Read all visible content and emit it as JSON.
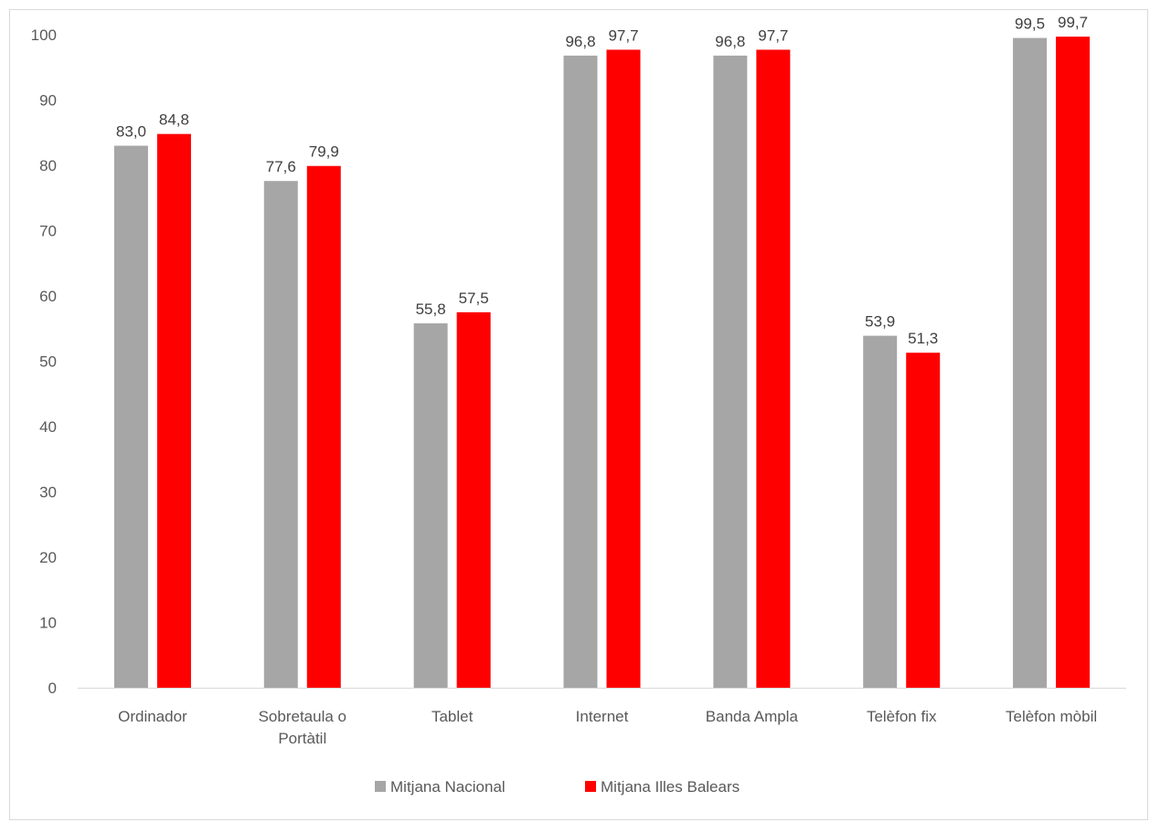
{
  "chart_data": {
    "type": "bar",
    "categories": [
      "Ordinador",
      "Sobretaula o Portàtil",
      "Tablet",
      "Internet",
      "Banda Ampla",
      "Telèfon fix",
      "Telèfon mòbil"
    ],
    "category_lines": [
      [
        "Ordinador"
      ],
      [
        "Sobretaula o",
        "Portàtil"
      ],
      [
        "Tablet"
      ],
      [
        "Internet"
      ],
      [
        "Banda Ampla"
      ],
      [
        "Telèfon fix"
      ],
      [
        "Telèfon mòbil"
      ]
    ],
    "series": [
      {
        "name": "Mitjana Nacional",
        "color": "#a6a6a6",
        "values": [
          83.0,
          77.6,
          55.8,
          96.8,
          96.8,
          53.9,
          99.5
        ],
        "labels": [
          "83,0",
          "77,6",
          "55,8",
          "96,8",
          "96,8",
          "53,9",
          "99,5"
        ]
      },
      {
        "name": "Mitjana Illes Balears",
        "color": "#ff0000",
        "values": [
          84.8,
          79.9,
          57.5,
          97.7,
          97.7,
          51.3,
          99.7
        ],
        "labels": [
          "84,8",
          "79,9",
          "57,5",
          "97,7",
          "97,7",
          "51,3",
          "99,7"
        ]
      }
    ],
    "ylim": [
      0,
      100
    ],
    "yticks": [
      0,
      10,
      20,
      30,
      40,
      50,
      60,
      70,
      80,
      90,
      100
    ],
    "grid": false,
    "legend": "bottom",
    "title": "",
    "xlabel": "",
    "ylabel": ""
  }
}
